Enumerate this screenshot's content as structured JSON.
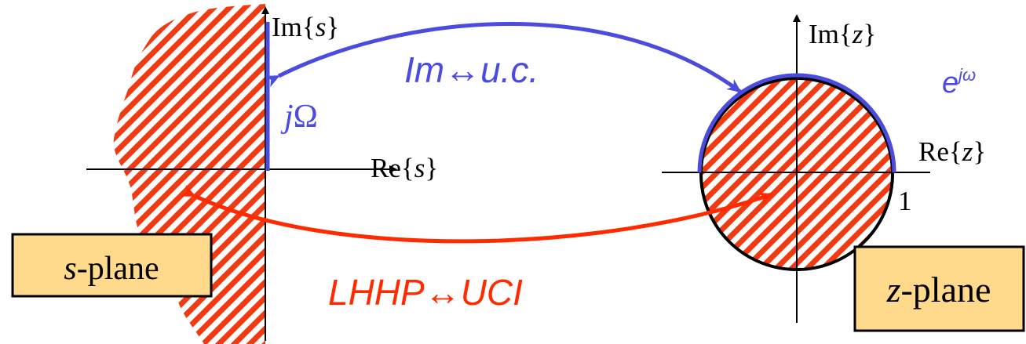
{
  "s_plane": {
    "axis_re": {
      "prefix": "Re{",
      "var": "s",
      "suffix": "}"
    },
    "axis_im": {
      "prefix": "Im{",
      "var": "s",
      "suffix": "}"
    },
    "j_omega": {
      "j": "j",
      "omega": "Ω"
    },
    "box_label": {
      "var": "s",
      "rest": "-plane"
    }
  },
  "z_plane": {
    "axis_re": {
      "prefix": "Re{",
      "var": "z",
      "suffix": "}"
    },
    "axis_im": {
      "prefix": "Im{",
      "var": "z",
      "suffix": "}"
    },
    "unit_label": "1",
    "e_jw": {
      "base": "e",
      "exp": "jω"
    },
    "box_label": {
      "var": "z",
      "rest": "-plane"
    }
  },
  "mappings": {
    "blue_label": "Im↔u.c.",
    "red_label": "LHHP↔UCI"
  },
  "colors": {
    "blue": "#4B4BDF",
    "red": "#FF2A00",
    "hatch_red": "#F03A12",
    "box_fill": "#FFD98C",
    "axis": "#000000"
  }
}
